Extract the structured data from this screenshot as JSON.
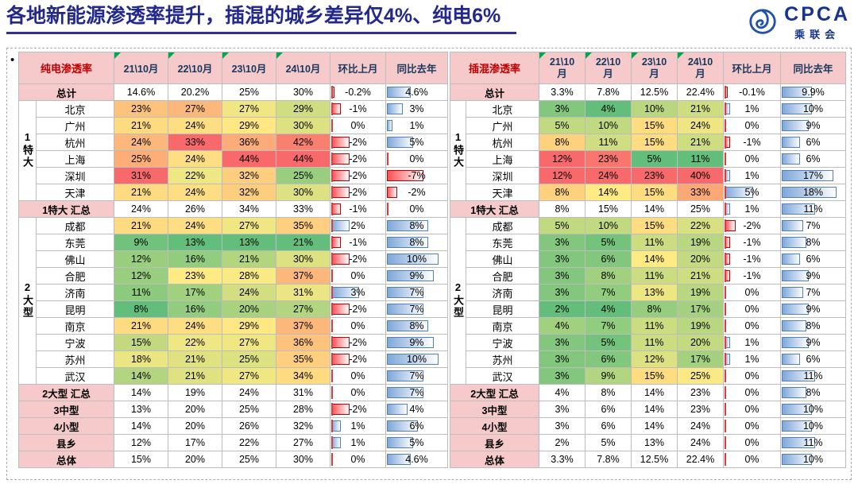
{
  "title": "各地新能源渗透率提升，插混的城乡差异仅4%、纯电6%",
  "bullet": "•",
  "logo": {
    "brand": "CPCA",
    "sub": "乘联会",
    "icon": "cpca-swirl-icon"
  },
  "colors": {
    "heat_low": "#63BE7B",
    "heat_mid": "#FFEB84",
    "heat_high": "#F8696B",
    "bar_positive": "#7FA7D9",
    "bar_positive_border": "#4F81BD",
    "bar_negative": "#FF5055",
    "bar_negative_border": "#C00000",
    "bar_axis": "#E23A3A",
    "header_bg": "#F6CACA",
    "header_text": "#17375E",
    "table_title_text": "#C00000",
    "summary_bg": "#F6CACA",
    "title_text": "#23298A",
    "accent_line": "#32308F",
    "logo_blue": "#17338F",
    "triangle_green": "#00A550",
    "grid_line": "#BDBDBD"
  },
  "chart_data": [
    {
      "type": "table",
      "name": "纯电渗透率",
      "columns": [
        "21\\10月",
        "22\\10月",
        "23\\10月",
        "24\\10月",
        "环比上月",
        "同比去年"
      ],
      "rows": [
        {
          "label": "总计",
          "type": "summary",
          "values": [
            14.6,
            20.2,
            25,
            30
          ],
          "mom": -0.2,
          "yoy": 4.6
        },
        {
          "label": "北京",
          "type": "city",
          "group": {
            "label": "1特大",
            "span": 6
          },
          "values": [
            23,
            27,
            27,
            29
          ],
          "mom": -1,
          "yoy": 3
        },
        {
          "label": "广州",
          "type": "city",
          "values": [
            21,
            24,
            29,
            30
          ],
          "mom": 0,
          "yoy": 1
        },
        {
          "label": "杭州",
          "type": "city",
          "values": [
            24,
            33,
            36,
            42
          ],
          "mom": -2,
          "yoy": 5
        },
        {
          "label": "上海",
          "type": "city",
          "values": [
            25,
            24,
            44,
            44
          ],
          "mom": -2,
          "yoy": 0
        },
        {
          "label": "深圳",
          "type": "city",
          "values": [
            31,
            22,
            32,
            25
          ],
          "mom": -2,
          "yoy": -7
        },
        {
          "label": "天津",
          "type": "city",
          "values": [
            21,
            24,
            32,
            30
          ],
          "mom": -2,
          "yoy": -2
        },
        {
          "label": "1特大 汇总",
          "type": "summary",
          "values": [
            24,
            26,
            34,
            33
          ],
          "mom": -1,
          "yoy": 0
        },
        {
          "label": "成都",
          "type": "city",
          "group": {
            "label": "2大型",
            "span": 10
          },
          "values": [
            21,
            24,
            27,
            35
          ],
          "mom": 2,
          "yoy": 8
        },
        {
          "label": "东莞",
          "type": "city",
          "values": [
            9,
            13,
            13,
            21
          ],
          "mom": -1,
          "yoy": 8
        },
        {
          "label": "佛山",
          "type": "city",
          "values": [
            12,
            16,
            21,
            30
          ],
          "mom": -2,
          "yoy": 10
        },
        {
          "label": "合肥",
          "type": "city",
          "values": [
            12,
            23,
            28,
            37
          ],
          "mom": 0,
          "yoy": 9
        },
        {
          "label": "济南",
          "type": "city",
          "values": [
            11,
            17,
            24,
            31
          ],
          "mom": 3,
          "yoy": 7
        },
        {
          "label": "昆明",
          "type": "city",
          "values": [
            8,
            16,
            20,
            27
          ],
          "mom": -2,
          "yoy": 7
        },
        {
          "label": "南京",
          "type": "city",
          "values": [
            21,
            24,
            29,
            37
          ],
          "mom": 0,
          "yoy": 8
        },
        {
          "label": "宁波",
          "type": "city",
          "values": [
            15,
            22,
            27,
            36
          ],
          "mom": -2,
          "yoy": 9
        },
        {
          "label": "苏州",
          "type": "city",
          "values": [
            18,
            21,
            25,
            35
          ],
          "mom": -2,
          "yoy": 10
        },
        {
          "label": "武汉",
          "type": "city",
          "values": [
            14,
            21,
            27,
            34
          ],
          "mom": 0,
          "yoy": 7
        },
        {
          "label": "2大型 汇总",
          "type": "summary",
          "values": [
            14,
            19,
            24,
            31
          ],
          "mom": 0,
          "yoy": 7
        },
        {
          "label": "3中型",
          "type": "summary",
          "values": [
            13,
            20,
            25,
            28
          ],
          "mom": -2,
          "yoy": 4
        },
        {
          "label": "4小型",
          "type": "summary",
          "values": [
            14,
            20,
            26,
            32
          ],
          "mom": 1,
          "yoy": 6
        },
        {
          "label": "县乡",
          "type": "summary",
          "values": [
            12,
            17,
            22,
            27
          ],
          "mom": 1,
          "yoy": 5
        },
        {
          "label": "总体",
          "type": "summary",
          "values": [
            15,
            20,
            25,
            30
          ],
          "mom": 0,
          "yoy": 4.6
        }
      ]
    },
    {
      "type": "table",
      "name": "插混渗透率",
      "columns": [
        "21\\10月",
        "22\\10月",
        "23\\10月",
        "24\\10月",
        "环比上月",
        "同比去年"
      ],
      "rows": [
        {
          "label": "总计",
          "type": "summary",
          "values": [
            3.3,
            7.8,
            12.5,
            22.4
          ],
          "mom": -0.1,
          "yoy": 9.9
        },
        {
          "label": "北京",
          "type": "city",
          "group": {
            "label": "1特大",
            "span": 6
          },
          "values": [
            3,
            4,
            10,
            21
          ],
          "mom": 1,
          "yoy": 10
        },
        {
          "label": "广州",
          "type": "city",
          "values": [
            5,
            10,
            15,
            24
          ],
          "mom": 0,
          "yoy": 9
        },
        {
          "label": "杭州",
          "type": "city",
          "values": [
            8,
            11,
            15,
            21
          ],
          "mom": -1,
          "yoy": 6
        },
        {
          "label": "上海",
          "type": "city",
          "values": [
            12,
            23,
            5,
            11
          ],
          "mom": 0,
          "yoy": 6
        },
        {
          "label": "深圳",
          "type": "city",
          "values": [
            12,
            24,
            23,
            40
          ],
          "mom": 1,
          "yoy": 17
        },
        {
          "label": "天津",
          "type": "city",
          "values": [
            8,
            14,
            15,
            33
          ],
          "mom": 5,
          "yoy": 18
        },
        {
          "label": "1特大 汇总",
          "type": "summary",
          "values": [
            8,
            15,
            14,
            25
          ],
          "mom": 1,
          "yoy": 11
        },
        {
          "label": "成都",
          "type": "city",
          "group": {
            "label": "2大型",
            "span": 10
          },
          "values": [
            5,
            10,
            15,
            22
          ],
          "mom": -2,
          "yoy": 7
        },
        {
          "label": "东莞",
          "type": "city",
          "values": [
            3,
            5,
            11,
            19
          ],
          "mom": -1,
          "yoy": 8
        },
        {
          "label": "佛山",
          "type": "city",
          "values": [
            3,
            6,
            14,
            20
          ],
          "mom": -1,
          "yoy": 6
        },
        {
          "label": "合肥",
          "type": "city",
          "values": [
            3,
            8,
            11,
            21
          ],
          "mom": -1,
          "yoy": 9
        },
        {
          "label": "济南",
          "type": "city",
          "values": [
            3,
            7,
            13,
            19
          ],
          "mom": 0,
          "yoy": 7
        },
        {
          "label": "昆明",
          "type": "city",
          "values": [
            2,
            4,
            8,
            17
          ],
          "mom": 0,
          "yoy": 9
        },
        {
          "label": "南京",
          "type": "city",
          "values": [
            4,
            7,
            11,
            19
          ],
          "mom": 0,
          "yoy": 8
        },
        {
          "label": "宁波",
          "type": "city",
          "values": [
            3,
            5,
            11,
            20
          ],
          "mom": 1,
          "yoy": 9
        },
        {
          "label": "苏州",
          "type": "city",
          "values": [
            3,
            6,
            12,
            17
          ],
          "mom": 1,
          "yoy": 6
        },
        {
          "label": "武汉",
          "type": "city",
          "values": [
            3,
            9,
            15,
            25
          ],
          "mom": 0,
          "yoy": 11
        },
        {
          "label": "2大型 汇总",
          "type": "summary",
          "values": [
            4,
            8,
            14,
            23
          ],
          "mom": 0,
          "yoy": 8
        },
        {
          "label": "3中型",
          "type": "summary",
          "values": [
            3,
            6,
            14,
            23
          ],
          "mom": 0,
          "yoy": 10
        },
        {
          "label": "4小型",
          "type": "summary",
          "values": [
            3,
            6,
            14,
            24
          ],
          "mom": 0,
          "yoy": 10
        },
        {
          "label": "县乡",
          "type": "summary",
          "values": [
            2,
            5,
            13,
            24
          ],
          "mom": 0,
          "yoy": 11
        },
        {
          "label": "总体",
          "type": "summary",
          "values": [
            3.3,
            7.8,
            12.5,
            22.4
          ],
          "mom": 0,
          "yoy": 10
        }
      ]
    }
  ]
}
